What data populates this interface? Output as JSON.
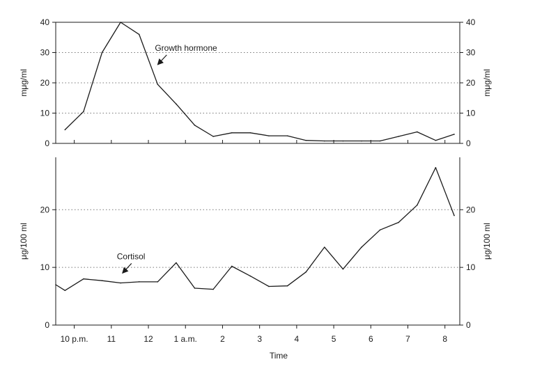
{
  "chart_data": [
    {
      "type": "line",
      "panel": "top",
      "ylabel_left": "mμg/ml",
      "ylabel_right": "mμg/ml",
      "ylim": [
        0,
        40
      ],
      "yticks": [
        0,
        10,
        20,
        30,
        40
      ],
      "grid": true,
      "series": [
        {
          "x": [
            21.75,
            22.25,
            22.75,
            23.25,
            23.75,
            24.25,
            24.75,
            25.25,
            25.75,
            26.25,
            26.75,
            27.25,
            27.75,
            28.25,
            28.75,
            29.25,
            29.75,
            30.25,
            30.75,
            31.25,
            31.75,
            32.25
          ],
          "values": [
            4.5,
            10.5,
            30,
            40,
            36,
            19.5,
            13,
            6,
            2.3,
            3.5,
            3.5,
            2.5,
            2.5,
            1,
            0.8,
            0.8,
            0.8,
            0.8,
            2.3,
            3.8,
            1,
            3
          ]
        }
      ],
      "annotations": [
        {
          "text": "Growth hormone",
          "arrow_to": [
            24.25,
            26
          ]
        }
      ]
    },
    {
      "type": "line",
      "panel": "bottom",
      "xlabel": "Time",
      "ylabel_left": "μg/100 ml",
      "ylabel_right": "μg/100 ml",
      "ylim": [
        0,
        28
      ],
      "yticks": [
        0,
        10,
        20
      ],
      "grid": true,
      "x_tick_values": [
        22,
        23,
        24,
        25,
        26,
        27,
        28,
        29,
        30,
        31,
        32
      ],
      "x_tick_labels": [
        "10 p.m.",
        "11",
        "12",
        "1 a.m.",
        "2",
        "3",
        "4",
        "5",
        "6",
        "7",
        "8"
      ],
      "xlim": [
        21.5,
        32.4
      ],
      "series": [
        {
          "x": [
            21.5,
            21.75,
            22.25,
            22.75,
            23.25,
            23.75,
            24.25,
            24.75,
            25.25,
            25.75,
            26.25,
            26.75,
            27.25,
            27.75,
            28.25,
            28.75,
            29.25,
            29.75,
            30.25,
            30.75,
            31.25,
            31.75,
            32.25
          ],
          "values": [
            7,
            6,
            8,
            7.7,
            7.3,
            7.5,
            7.5,
            10.8,
            6.4,
            6.2,
            10.2,
            8.5,
            6.7,
            6.8,
            9.2,
            13.5,
            9.7,
            13.5,
            16.5,
            17.8,
            20.8,
            27.3,
            19
          ]
        }
      ],
      "annotations": [
        {
          "text": "Cortisol",
          "arrow_to": [
            23.3,
            9
          ]
        }
      ]
    }
  ]
}
